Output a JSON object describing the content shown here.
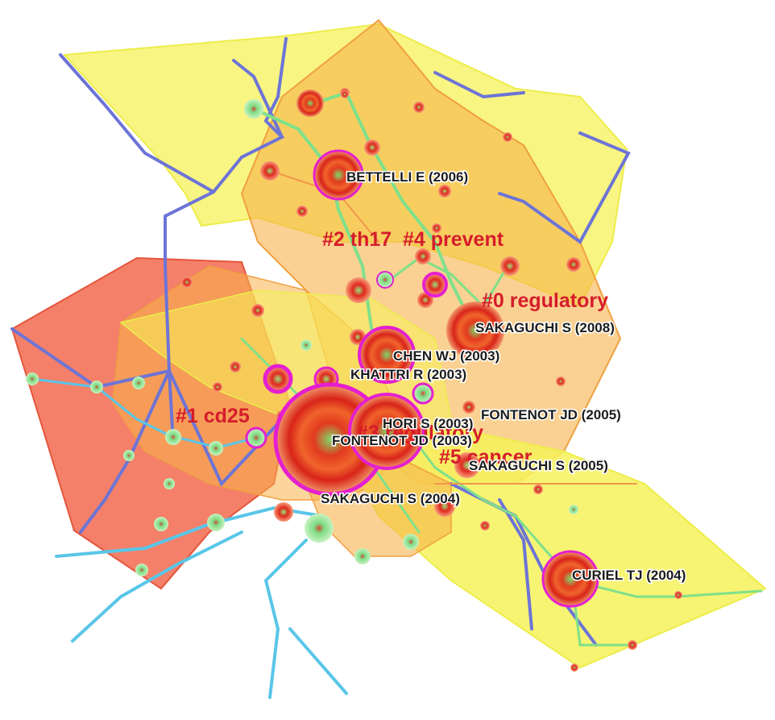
{
  "network": {
    "cluster_labels": [
      {
        "id": "c0",
        "text": "#0 regulatory"
      },
      {
        "id": "c1",
        "text": "#1 cd25"
      },
      {
        "id": "c2",
        "text": "#2 th17"
      },
      {
        "id": "c3",
        "text": "#3 regulatory"
      },
      {
        "id": "c4",
        "text": "#4 prevent"
      },
      {
        "id": "c5",
        "text": "#5 cancer"
      }
    ],
    "node_labels": [
      {
        "id": "bettelli",
        "text": "BETTELLI E (2006)"
      },
      {
        "id": "sakaguchi2008",
        "text": "SAKAGUCHI S (2008)"
      },
      {
        "id": "chenwj",
        "text": "CHEN WJ (2003)"
      },
      {
        "id": "khattri",
        "text": "KHATTRI R (2003)"
      },
      {
        "id": "fontenot2005",
        "text": "FONTENOT JD (2005)"
      },
      {
        "id": "hori",
        "text": "HORI S (2003)"
      },
      {
        "id": "fontenot2003",
        "text": "FONTENOT JD (2003)"
      },
      {
        "id": "sakaguchi2005",
        "text": "SAKAGUCHI S (2005)"
      },
      {
        "id": "sakaguchi2004",
        "text": "SAKAGUCHI S (2004)"
      },
      {
        "id": "curiel",
        "text": "CURIEL TJ (2004)"
      }
    ],
    "colors": {
      "cluster_red": "#f26a4f",
      "cluster_orange": "#f7b24a",
      "cluster_yellow": "#f6f25a",
      "edge_blue": "#6d74d6",
      "edge_cyan": "#59c6e8",
      "edge_green": "#7fe08a",
      "node_red": "#e0281e",
      "ring_magenta": "#e51fd0",
      "label_red": "#d61c2b"
    }
  }
}
